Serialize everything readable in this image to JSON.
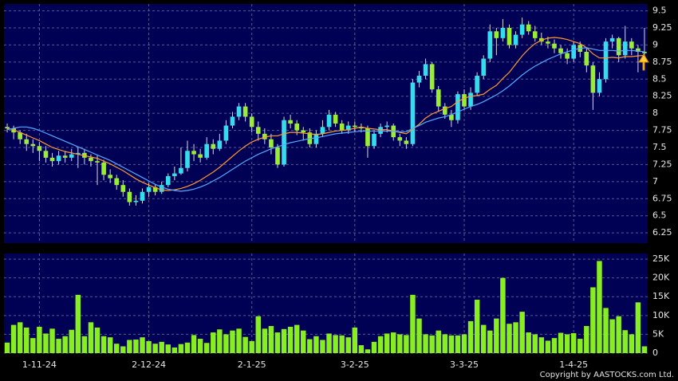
{
  "chart_data": [
    {
      "type": "candlestick",
      "up_color": "#33ddee",
      "down_color": "#99ee33",
      "grid": true,
      "ylim": [
        6.1,
        9.6
      ],
      "yticks": [
        6.25,
        6.5,
        6.75,
        7,
        7.25,
        7.5,
        7.75,
        8,
        8.25,
        8.5,
        8.75,
        9,
        9.25,
        9.5
      ],
      "ohlc": [
        [
          7.8,
          7.85,
          7.72,
          7.78
        ],
        [
          7.78,
          7.82,
          7.62,
          7.72
        ],
        [
          7.72,
          7.75,
          7.55,
          7.62
        ],
        [
          7.62,
          7.7,
          7.45,
          7.55
        ],
        [
          7.55,
          7.62,
          7.42,
          7.52
        ],
        [
          7.52,
          7.58,
          7.3,
          7.45
        ],
        [
          7.45,
          7.52,
          7.28,
          7.35
        ],
        [
          7.35,
          7.42,
          7.22,
          7.3
        ],
        [
          7.3,
          7.45,
          7.25,
          7.38
        ],
        [
          7.38,
          7.45,
          7.28,
          7.35
        ],
        [
          7.35,
          7.48,
          7.3,
          7.4
        ],
        [
          7.4,
          7.5,
          7.2,
          7.42
        ],
        [
          7.42,
          7.48,
          7.25,
          7.35
        ],
        [
          7.35,
          7.4,
          7.22,
          7.3
        ],
        [
          7.3,
          7.38,
          6.95,
          7.28
        ],
        [
          7.28,
          7.32,
          7.02,
          7.1
        ],
        [
          7.1,
          7.18,
          6.98,
          7.05
        ],
        [
          7.05,
          7.1,
          6.88,
          6.95
        ],
        [
          6.95,
          7.02,
          6.78,
          6.85
        ],
        [
          6.85,
          6.9,
          6.65,
          6.7
        ],
        [
          6.7,
          6.8,
          6.65,
          6.72
        ],
        [
          6.72,
          6.9,
          6.68,
          6.85
        ],
        [
          6.85,
          6.98,
          6.78,
          6.92
        ],
        [
          6.92,
          6.96,
          6.8,
          6.85
        ],
        [
          6.85,
          7.0,
          6.82,
          6.95
        ],
        [
          6.95,
          7.12,
          6.92,
          7.08
        ],
        [
          7.08,
          7.22,
          7.02,
          7.12
        ],
        [
          7.12,
          7.5,
          7.1,
          7.2
        ],
        [
          7.2,
          7.6,
          7.15,
          7.45
        ],
        [
          7.45,
          7.55,
          7.3,
          7.4
        ],
        [
          7.4,
          7.48,
          7.28,
          7.35
        ],
        [
          7.35,
          7.65,
          7.32,
          7.55
        ],
        [
          7.55,
          7.62,
          7.4,
          7.48
        ],
        [
          7.48,
          7.7,
          7.45,
          7.6
        ],
        [
          7.6,
          7.9,
          7.55,
          7.82
        ],
        [
          7.82,
          8.02,
          7.78,
          7.95
        ],
        [
          7.95,
          8.15,
          7.9,
          8.1
        ],
        [
          8.1,
          8.15,
          7.88,
          7.95
        ],
        [
          7.95,
          8.0,
          7.72,
          7.8
        ],
        [
          7.8,
          7.88,
          7.6,
          7.7
        ],
        [
          7.7,
          7.78,
          7.55,
          7.62
        ],
        [
          7.62,
          7.7,
          7.4,
          7.5
        ],
        [
          7.5,
          7.55,
          7.2,
          7.25
        ],
        [
          7.25,
          7.95,
          7.22,
          7.9
        ],
        [
          7.9,
          7.98,
          7.78,
          7.85
        ],
        [
          7.85,
          7.9,
          7.68,
          7.75
        ],
        [
          7.75,
          7.8,
          7.6,
          7.72
        ],
        [
          7.72,
          7.78,
          7.5,
          7.55
        ],
        [
          7.55,
          7.75,
          7.5,
          7.7
        ],
        [
          7.7,
          7.9,
          7.65,
          7.8
        ],
        [
          7.8,
          8.05,
          7.75,
          7.98
        ],
        [
          7.98,
          8.02,
          7.8,
          7.85
        ],
        [
          7.85,
          7.9,
          7.7,
          7.75
        ],
        [
          7.75,
          7.88,
          7.7,
          7.82
        ],
        [
          7.82,
          7.88,
          7.72,
          7.8
        ],
        [
          7.8,
          7.85,
          7.72,
          7.78
        ],
        [
          7.78,
          7.82,
          7.35,
          7.52
        ],
        [
          7.52,
          7.75,
          7.48,
          7.7
        ],
        [
          7.7,
          7.85,
          7.65,
          7.8
        ],
        [
          7.8,
          7.88,
          7.72,
          7.82
        ],
        [
          7.82,
          7.85,
          7.6,
          7.65
        ],
        [
          7.65,
          7.7,
          7.52,
          7.6
        ],
        [
          7.6,
          7.65,
          7.48,
          7.55
        ],
        [
          7.55,
          8.5,
          7.52,
          8.45
        ],
        [
          8.45,
          8.62,
          8.38,
          8.55
        ],
        [
          8.55,
          8.8,
          8.5,
          8.72
        ],
        [
          8.72,
          8.75,
          8.3,
          8.35
        ],
        [
          8.35,
          8.4,
          8.02,
          8.1
        ],
        [
          8.1,
          8.15,
          7.92,
          7.98
        ],
        [
          7.98,
          8.05,
          7.8,
          7.9
        ],
        [
          7.9,
          8.32,
          7.85,
          8.28
        ],
        [
          8.28,
          8.35,
          8.05,
          8.1
        ],
        [
          8.1,
          8.38,
          8.05,
          8.3
        ],
        [
          8.3,
          8.6,
          8.25,
          8.55
        ],
        [
          8.55,
          8.85,
          8.5,
          8.8
        ],
        [
          8.8,
          9.3,
          8.75,
          9.2
        ],
        [
          9.2,
          9.25,
          8.85,
          9.1
        ],
        [
          9.1,
          9.38,
          9.05,
          9.25
        ],
        [
          9.25,
          9.3,
          8.95,
          9.0
        ],
        [
          9.0,
          9.2,
          8.95,
          9.15
        ],
        [
          9.15,
          9.4,
          9.1,
          9.3
        ],
        [
          9.3,
          9.35,
          9.15,
          9.2
        ],
        [
          9.2,
          9.28,
          9.05,
          9.1
        ],
        [
          9.1,
          9.18,
          9.0,
          9.05
        ],
        [
          9.05,
          9.12,
          8.95,
          9.02
        ],
        [
          9.02,
          9.08,
          8.88,
          8.95
        ],
        [
          8.95,
          9.0,
          8.8,
          8.88
        ],
        [
          8.88,
          8.95,
          8.72,
          8.8
        ],
        [
          8.8,
          9.05,
          8.75,
          9.0
        ],
        [
          9.0,
          9.05,
          8.82,
          8.9
        ],
        [
          8.9,
          8.95,
          8.6,
          8.7
        ],
        [
          8.7,
          8.75,
          8.05,
          8.3
        ],
        [
          8.3,
          8.6,
          8.25,
          8.5
        ],
        [
          8.5,
          9.1,
          8.45,
          9.05
        ],
        [
          9.05,
          9.15,
          8.95,
          9.1
        ],
        [
          9.1,
          9.12,
          8.75,
          8.85
        ],
        [
          8.85,
          9.28,
          8.8,
          9.05
        ],
        [
          9.05,
          9.1,
          8.85,
          8.95
        ],
        [
          8.95,
          9.0,
          8.6,
          8.9
        ],
        [
          8.9,
          9.25,
          8.85,
          8.88
        ]
      ],
      "series": [
        {
          "color": "#ff9933",
          "values": [
            7.78,
            7.76,
            7.72,
            7.68,
            7.64,
            7.6,
            7.55,
            7.5,
            7.47,
            7.44,
            7.42,
            7.4,
            7.38,
            7.36,
            7.34,
            7.3,
            7.26,
            7.21,
            7.16,
            7.1,
            7.04,
            6.99,
            6.95,
            6.91,
            6.88,
            6.87,
            6.88,
            6.9,
            6.93,
            6.97,
            7.02,
            7.08,
            7.14,
            7.21,
            7.29,
            7.37,
            7.45,
            7.52,
            7.58,
            7.62,
            7.65,
            7.67,
            7.67,
            7.7,
            7.72,
            7.72,
            7.71,
            7.7,
            7.69,
            7.7,
            7.72,
            7.74,
            7.75,
            7.76,
            7.78,
            7.8,
            7.78,
            7.77,
            7.76,
            7.76,
            7.74,
            7.72,
            7.7,
            7.77,
            7.84,
            7.93,
            7.99,
            8.03,
            8.07,
            8.1,
            8.17,
            8.22,
            8.25,
            8.26,
            8.28,
            8.35,
            8.41,
            8.51,
            8.6,
            8.72,
            8.84,
            8.94,
            9.02,
            9.07,
            9.1,
            9.11,
            9.1,
            9.08,
            9.05,
            9.02,
            8.96,
            8.87,
            8.81,
            8.81,
            8.82,
            8.81,
            8.83,
            8.83,
            8.84,
            8.85
          ]
        },
        {
          "color": "#55aaff",
          "values": [
            7.76,
            7.78,
            7.8,
            7.8,
            7.78,
            7.75,
            7.71,
            7.67,
            7.63,
            7.59,
            7.55,
            7.51,
            7.47,
            7.43,
            7.39,
            7.35,
            7.31,
            7.26,
            7.21,
            7.16,
            7.11,
            7.06,
            7.01,
            6.96,
            6.92,
            6.89,
            6.87,
            6.86,
            6.87,
            6.89,
            6.92,
            6.96,
            7.01,
            7.06,
            7.12,
            7.18,
            7.24,
            7.3,
            7.35,
            7.4,
            7.44,
            7.48,
            7.51,
            7.54,
            7.57,
            7.59,
            7.61,
            7.63,
            7.64,
            7.66,
            7.68,
            7.7,
            7.71,
            7.72,
            7.73,
            7.74,
            7.74,
            7.74,
            7.74,
            7.74,
            7.74,
            7.73,
            7.73,
            7.78,
            7.82,
            7.87,
            7.9,
            7.93,
            7.95,
            7.98,
            8.02,
            8.06,
            8.1,
            8.13,
            8.17,
            8.22,
            8.27,
            8.33,
            8.4,
            8.48,
            8.56,
            8.63,
            8.69,
            8.74,
            8.79,
            8.83,
            8.87,
            8.9,
            8.93,
            8.95,
            8.96,
            8.94,
            8.92,
            8.92,
            8.92,
            8.91,
            8.92,
            8.92,
            8.91,
            8.9
          ]
        }
      ]
    },
    {
      "type": "bar",
      "color": "#88ee22",
      "grid": true,
      "ylim": [
        0,
        26500
      ],
      "yticks": [
        0,
        {
          "value": 5000,
          "label": "5K"
        },
        {
          "value": 10000,
          "label": "10K"
        },
        {
          "value": 15000,
          "label": "15K"
        },
        {
          "value": 20000,
          "label": "20K"
        },
        {
          "value": 25000,
          "label": "25K"
        }
      ],
      "categories": [
        null,
        null,
        null,
        null,
        null,
        "1-11-24",
        null,
        null,
        null,
        null,
        null,
        null,
        null,
        null,
        null,
        null,
        null,
        null,
        null,
        null,
        null,
        null,
        "2-12-24",
        null,
        null,
        null,
        null,
        null,
        null,
        null,
        null,
        null,
        null,
        null,
        null,
        null,
        null,
        null,
        "2-1-25",
        null,
        null,
        null,
        null,
        null,
        null,
        null,
        null,
        null,
        null,
        null,
        null,
        null,
        null,
        null,
        "3-2-25",
        null,
        null,
        null,
        null,
        null,
        null,
        null,
        null,
        null,
        null,
        null,
        null,
        null,
        null,
        null,
        null,
        "3-3-25",
        null,
        null,
        null,
        null,
        null,
        null,
        null,
        null,
        null,
        null,
        null,
        null,
        null,
        null,
        null,
        null,
        "1-4-25",
        null,
        null,
        null,
        null,
        null,
        null,
        null,
        null,
        null,
        null,
        null
      ],
      "values": [
        2800,
        7500,
        8200,
        6800,
        4000,
        7000,
        5200,
        6500,
        3800,
        4500,
        6200,
        15500,
        4500,
        8200,
        6800,
        4500,
        4200,
        2500,
        1800,
        3500,
        3600,
        4200,
        3200,
        2500,
        3000,
        2300,
        1500,
        2400,
        2800,
        4800,
        3800,
        2700,
        5500,
        6300,
        5000,
        6000,
        6500,
        4300,
        3200,
        9800,
        6500,
        7200,
        5500,
        6400,
        7000,
        7500,
        6000,
        3700,
        4500,
        3500,
        5200,
        4800,
        4700,
        4200,
        6800,
        2100,
        1000,
        3000,
        4500,
        5200,
        5500,
        5000,
        4800,
        15500,
        9200,
        5000,
        4700,
        6000,
        5000,
        4700,
        4700,
        5000,
        8500,
        14200,
        7500,
        6000,
        9200,
        20000,
        7800,
        8200,
        11000,
        5500,
        5000,
        4200,
        3300,
        4000,
        5400,
        5000,
        5300,
        3800,
        7200,
        17500,
        24500,
        12000,
        9000,
        9800,
        6100,
        5000,
        13500,
        1800
      ]
    }
  ],
  "copyright": "Copyright by AASTOCKS.com Ltd."
}
